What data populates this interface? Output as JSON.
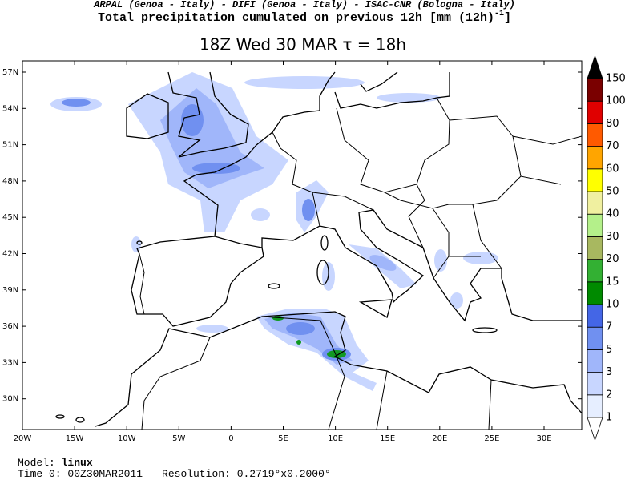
{
  "header": {
    "credits": "ARPAL (Genoa - Italy)  -  DIFI (Genoa - Italy)  -  ISAC-CNR (Bologna - Italy)",
    "field": "Total precipitation cumulated on previous 12h [mm (12h)",
    "field_exponent": "-1",
    "field_end": "]",
    "title": "18Z Wed 30 MAR  τ = 18h"
  },
  "map": {
    "lon_ticks": [
      {
        "value": -20,
        "label": "20W"
      },
      {
        "value": -15,
        "label": "15W"
      },
      {
        "value": -10,
        "label": "10W"
      },
      {
        "value": -5,
        "label": "5W"
      },
      0,
      {
        "value": 5,
        "label": "5E"
      },
      {
        "value": 10,
        "label": "10E"
      },
      {
        "value": 15,
        "label": "15E"
      },
      {
        "value": 20,
        "label": "20E"
      },
      {
        "value": 25,
        "label": "25E"
      },
      {
        "value": 30,
        "label": "30E"
      }
    ],
    "lat_ticks": [
      {
        "value": 57,
        "label": "57N"
      },
      {
        "value": 54,
        "label": "54N"
      },
      {
        "value": 51,
        "label": "51N"
      },
      {
        "value": 48,
        "label": "48N"
      },
      {
        "value": 45,
        "label": "45N"
      },
      {
        "value": 42,
        "label": "42N"
      },
      {
        "value": 39,
        "label": "39N"
      },
      {
        "value": 36,
        "label": "36N"
      },
      {
        "value": 33,
        "label": "33N"
      },
      {
        "value": 30,
        "label": "30N"
      }
    ]
  },
  "colorbar": {
    "levels": [
      1,
      2,
      3,
      5,
      7,
      10,
      15,
      20,
      30,
      40,
      50,
      60,
      70,
      80,
      100,
      150
    ],
    "colors": [
      "#e6eeff",
      "#c8d6ff",
      "#a0b6fa",
      "#7090f0",
      "#4466e6",
      "#008a00",
      "#33b033",
      "#a8b860",
      "#b4f08a",
      "#f0f0a0",
      "#ffff00",
      "#ffa500",
      "#ff5a00",
      "#e00000",
      "#7a0000"
    ],
    "below_color": "#ffffff",
    "above_color": "#000000"
  },
  "footer": {
    "model_label": "Model:",
    "model": "linux",
    "time_label": "Time 0:",
    "time": "00Z30MAR2011",
    "resolution_label": "Resolution:",
    "resolution": "0.2719°x0.2000°"
  }
}
